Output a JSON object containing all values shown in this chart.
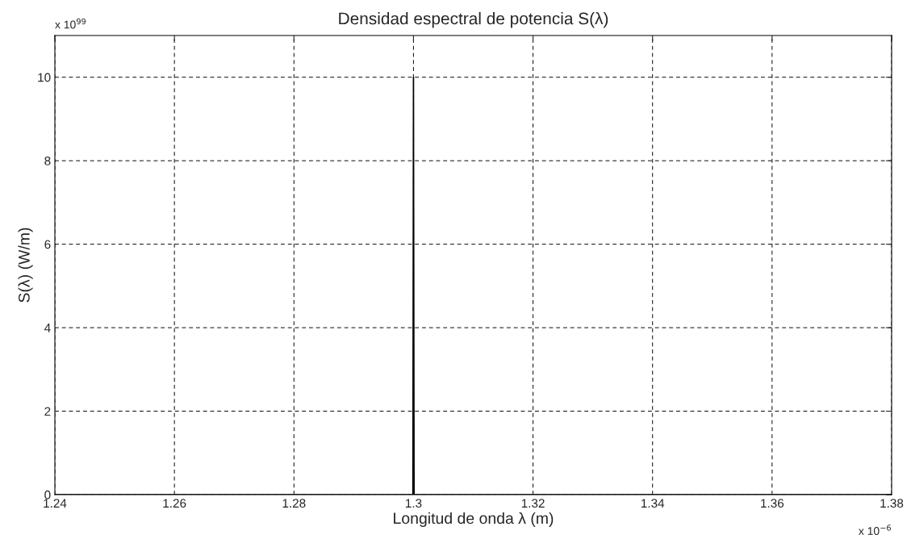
{
  "chart_data": {
    "type": "line",
    "title": "Densidad espectral de potencia S(λ)",
    "xlabel": "Longitud de onda λ (m)",
    "ylabel": "S(λ) (W/m)",
    "annotations": [
      "x 10$^{99}$",
      "x 10$^{−6}$"
    ],
    "series": [
      {
        "color": "#000000",
        "x": [
          1.24,
          1.2999,
          1.3,
          1.3001,
          1.38
        ],
        "values": [
          0,
          0,
          10,
          0,
          0
        ]
      }
    ],
    "xlim": [
      1.24,
      1.38
    ],
    "xticks": [
      1.24,
      1.26,
      1.28,
      1.3,
      1.32,
      1.34,
      1.36,
      1.38
    ],
    "ylim": [
      0,
      11
    ],
    "yticks": [
      0,
      2,
      4,
      6,
      8,
      10
    ],
    "grid": true,
    "line_style": "solid",
    "marker": "none"
  }
}
